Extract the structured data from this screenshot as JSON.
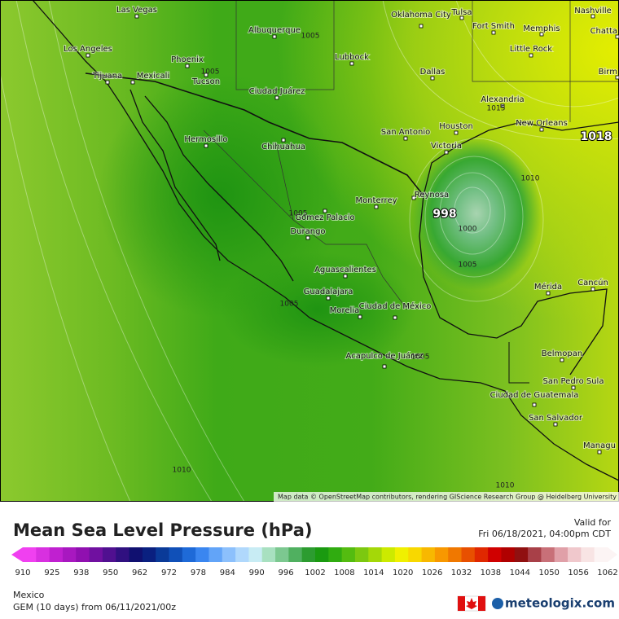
{
  "map": {
    "cities": [
      "Las Vegas",
      "Oklahoma City",
      "Tulsa",
      "Nashville",
      "Albuquerque",
      "Fort Smith",
      "Memphis",
      "Chatta",
      "Los Angeles",
      "Lubbock",
      "Little Rock",
      "Phoenix",
      "Tijuana",
      "Mexicali",
      "Tucson",
      "Dallas",
      "Birm",
      "Ciudad Juárez",
      "Alexandria",
      "Houston",
      "New Orleans",
      "San Antonio",
      "Hermosillo",
      "Chihuahua",
      "Victoria",
      "Monterrey",
      "Reynosa",
      "Gómez Palacio",
      "Durango",
      "Mérida",
      "Cancún",
      "Aguascalientes",
      "Guadalajara",
      "Morelia",
      "Ciudad de México",
      "Belmopan",
      "Acapulco de Juárez",
      "San Pedro Sula",
      "Ciudad de Guatemala",
      "San Salvador",
      "Managu"
    ],
    "contour_labels": [
      "1005",
      "1005",
      "1015",
      "1018",
      "1010",
      "998",
      "1000",
      "1005",
      "1005",
      "1005",
      "1005",
      "1010",
      "1010"
    ],
    "attribution": "Map data © OpenStreetMap contributors, rendering GIScience Research Group @ Heidelberg University"
  },
  "legend": {
    "title": "Mean Sea Level Pressure (hPa)",
    "valid_label": "Valid for",
    "valid_time": "Fri 06/18/2021, 04:00pm CDT",
    "ticks": [
      910,
      925,
      938,
      950,
      962,
      972,
      978,
      984,
      990,
      996,
      1002,
      1008,
      1014,
      1020,
      1026,
      1032,
      1038,
      1044,
      1050,
      1056,
      1062
    ],
    "colors": [
      "#f040f0",
      "#d830e0",
      "#c020d0",
      "#a818c0",
      "#9010b0",
      "#7010a0",
      "#501090",
      "#301080",
      "#101070",
      "#0a2080",
      "#0a3a98",
      "#1050b8",
      "#1e6ad8",
      "#3a86f0",
      "#62a4f8",
      "#8cc0fc",
      "#b0d8fc",
      "#c8ecf4",
      "#a8e0c0",
      "#7cc890",
      "#50b060",
      "#2c9c30",
      "#1a9a10",
      "#30ac10",
      "#54bc10",
      "#7cc810",
      "#a4d808",
      "#ccea00",
      "#f0f000",
      "#f8d800",
      "#f8b800",
      "#f89800",
      "#f07800",
      "#e85000",
      "#e02800",
      "#d00000",
      "#b00000",
      "#901010",
      "#a84048",
      "#c87078",
      "#e0a0a8",
      "#f0c8cc",
      "#f8e4e4",
      "#fcf4f4"
    ]
  },
  "footer": {
    "region": "Mexico",
    "model": "GEM (10 days) from 06/11/2021/00z",
    "logo": "meteologix.com"
  }
}
